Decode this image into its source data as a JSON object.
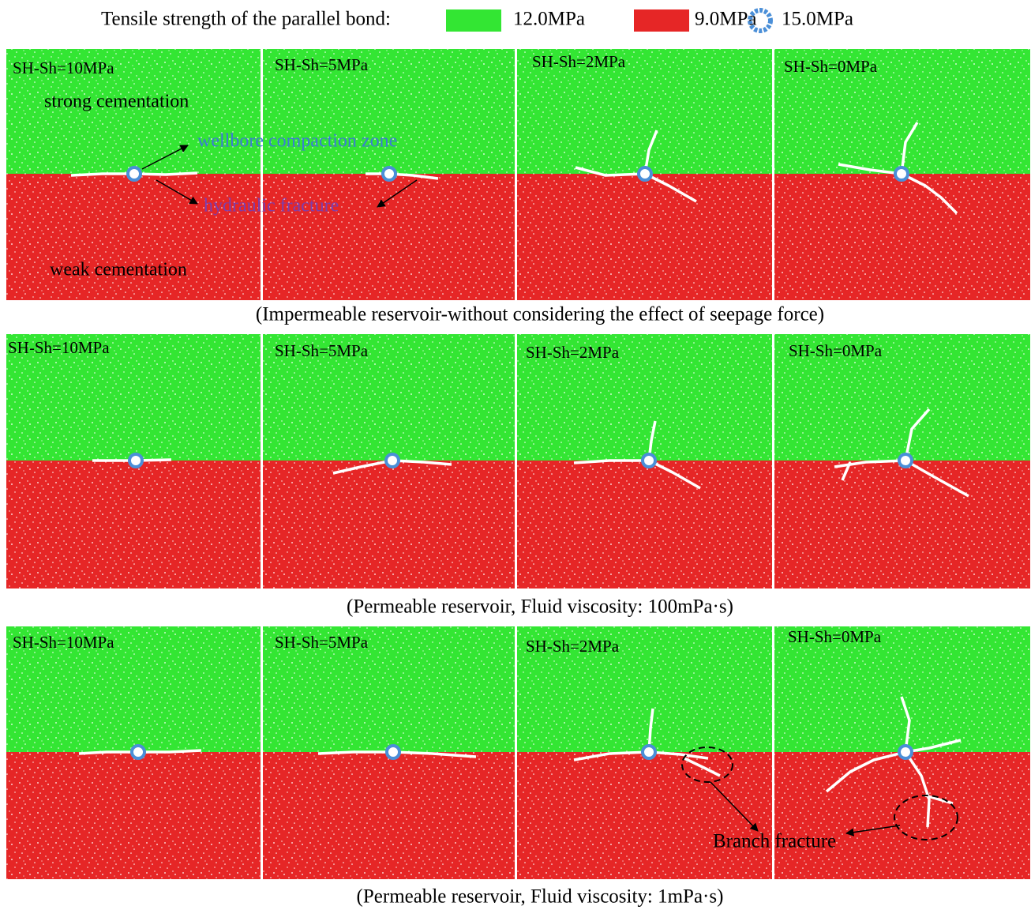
{
  "legend": {
    "title": "Tensile strength of the parallel bond:",
    "items": [
      {
        "label": "12.0MPa",
        "color": "#33e633"
      },
      {
        "label": "9.0MPa",
        "color": "#e62626"
      },
      {
        "label": "15.0MPa",
        "color": "#4a8fd8"
      }
    ]
  },
  "rows": [
    {
      "caption": "(Impermeable reservoir-without considering the effect of seepage force)",
      "panels": [
        "SH-Sh=10MPa",
        "SH-Sh=5MPa",
        "SH-Sh=2MPa",
        "SH-Sh=0MPa"
      ]
    },
    {
      "caption": "(Permeable reservoir, Fluid viscosity:  100mPa·s)",
      "panels": [
        "SH-Sh=10MPa",
        "SH-Sh=5MPa",
        "SH-Sh=2MPa",
        "SH-Sh=0MPa"
      ]
    },
    {
      "caption": "(Permeable reservoir, Fluid viscosity:  1mPa·s)",
      "panels": [
        "SH-Sh=10MPa",
        "SH-Sh=5MPa",
        "SH-Sh=2MPa",
        "SH-Sh=0MPa"
      ]
    }
  ],
  "annotations": {
    "strong": "strong cementation",
    "weak": "weak cementation",
    "wellbore": "wellbore compaction zone",
    "fracture": "hydraulic fracture",
    "branch": "Branch fracture"
  }
}
